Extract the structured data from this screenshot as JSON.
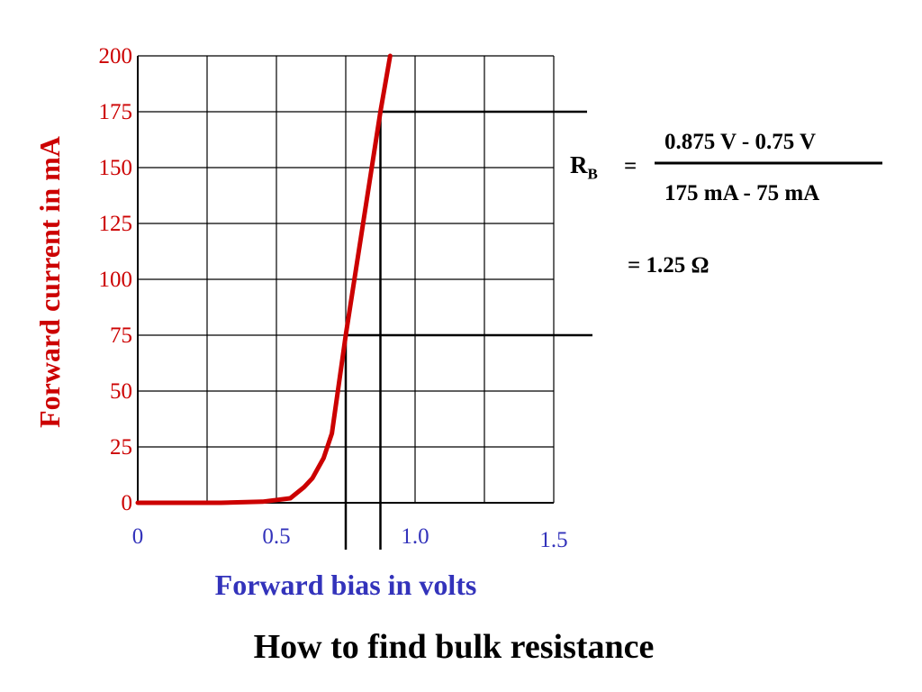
{
  "title": "How to find bulk resistance",
  "chart_data": {
    "type": "line",
    "ylabel": "Forward current in mA",
    "xlabel": "Forward bias in volts",
    "xlim": [
      0,
      1.5
    ],
    "ylim": [
      0,
      200
    ],
    "grid": true,
    "y_ticks": [
      "0",
      "25",
      "50",
      "75",
      "100",
      "125",
      "150",
      "175",
      "200"
    ],
    "x_ticks": [
      {
        "v": 0,
        "label": "0"
      },
      {
        "v": 0.5,
        "label": "0.5"
      },
      {
        "v": 1.0,
        "label": "1.0"
      },
      {
        "v": 1.5,
        "label": "1.5"
      }
    ],
    "series": [
      {
        "color": "#cc0000",
        "x": [
          0,
          0.3,
          0.45,
          0.55,
          0.6,
          0.63,
          0.67,
          0.7,
          0.75,
          0.875,
          0.91
        ],
        "y": [
          0,
          0,
          0.5,
          2,
          7,
          11,
          20,
          31,
          75,
          175,
          200
        ]
      }
    ],
    "reference_lines": [
      {
        "x": 0.75,
        "y": 75
      },
      {
        "x": 0.875,
        "y": 175
      }
    ]
  },
  "formula": {
    "lhs_main": "R",
    "lhs_sub": "B",
    "equals1": "=",
    "numerator": "0.875 V - 0.75 V",
    "denominator": "175 mA - 75 mA",
    "result": "=  1.25 Ω"
  },
  "colors": {
    "curve": "#cc0000",
    "y_axis_text": "#cc0000",
    "x_axis_text": "#3333bb",
    "grid": "#000000"
  }
}
